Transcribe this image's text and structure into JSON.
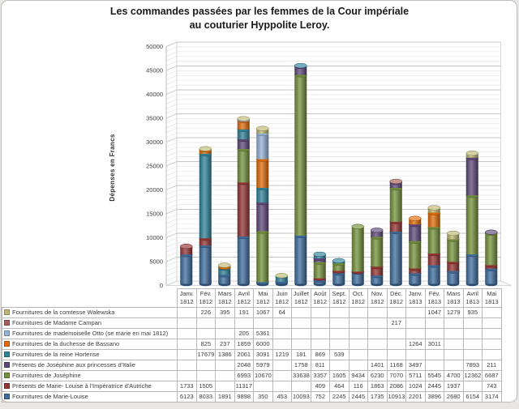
{
  "title": {
    "line1": "Les commandes passées par les femmes de la Cour impériale",
    "line2": "au couturier Hyppolite Leroy."
  },
  "chart_data": {
    "type": "bar",
    "variant": "3d-stacked-cylinder",
    "title": "Les commandes passées par les femmes de la Cour impériale au couturier Hyppolite Leroy.",
    "xlabel": "",
    "ylabel": "Dépenses en Francs",
    "ylim": [
      0,
      50000
    ],
    "ytick_step": 5000,
    "minor_gridline_step": 1000,
    "grid": true,
    "legend_position": "data-table-left-column",
    "stacking": "series are stacked bottom-to-top in reverse list order (Fournitures de Marie-Louise at bottom, comtesse Walewska on top)",
    "categories": [
      "Janv. 1812",
      "Fév. 1812",
      "Mars 1812",
      "Avril 1812",
      "Mai 1812",
      "Juin 1812",
      "Juillet 1812",
      "Août 1812",
      "Sept. 1812",
      "Oct. 1812",
      "Nov. 1812",
      "Déc. 1812",
      "Janv. 1813",
      "Fév. 1813",
      "Mars 1813",
      "Avril 1813",
      "Mai 1813"
    ],
    "series": [
      {
        "name": "Fournitures de la comtesse Walewska",
        "color": "#BDB873",
        "values": [
          null,
          226,
          395,
          191,
          1067,
          64,
          null,
          null,
          null,
          null,
          null,
          null,
          null,
          1047,
          1279,
          935,
          null
        ]
      },
      {
        "name": "Fournitures de Madame Campan",
        "color": "#A85E5B",
        "values": [
          null,
          null,
          null,
          null,
          null,
          null,
          null,
          null,
          null,
          null,
          null,
          217,
          null,
          null,
          null,
          null,
          null
        ]
      },
      {
        "name": "Fournitures de mademoiselle Otto (se marie en mai 1812)",
        "color": "#95B3D7",
        "values": [
          null,
          null,
          null,
          205,
          5361,
          null,
          null,
          null,
          null,
          null,
          null,
          null,
          null,
          null,
          null,
          null,
          null
        ]
      },
      {
        "name": "Fournitures de la duchesse de Bassano",
        "color": "#E36C09",
        "values": [
          null,
          825,
          237,
          1859,
          6000,
          null,
          null,
          null,
          null,
          null,
          null,
          null,
          1264,
          3011,
          null,
          null,
          null
        ]
      },
      {
        "name": "Fournitures de la reine Hortense",
        "color": "#31849B",
        "values": [
          null,
          17679,
          1386,
          2061,
          3091,
          1219,
          181,
          869,
          539,
          null,
          null,
          null,
          null,
          null,
          null,
          null,
          null
        ]
      },
      {
        "name": "Présents de Joséphine aux princesses d'Italie",
        "color": "#5F497A",
        "values": [
          null,
          null,
          null,
          2048,
          5979,
          null,
          1758,
          811,
          null,
          null,
          1401,
          1168,
          3497,
          null,
          null,
          7893,
          211
        ]
      },
      {
        "name": "Fournitures de Joséphine",
        "color": "#76923C",
        "values": [
          null,
          null,
          null,
          6993,
          10670,
          null,
          33638,
          3357,
          1605,
          9434,
          6230,
          7070,
          5711,
          5545,
          4700,
          12362,
          6687
        ]
      },
      {
        "name": "Présents de Marie- Louise à l'Impératrice d'Autriche",
        "color": "#943634",
        "values": [
          1733,
          1505,
          null,
          11317,
          null,
          null,
          null,
          409,
          464,
          116,
          1863,
          2086,
          1024,
          2445,
          1937,
          null,
          743
        ]
      },
      {
        "name": "Fournitures de Marie-Louise",
        "color": "#3F6D9F",
        "values": [
          6123,
          8033,
          1891,
          9898,
          350,
          453,
          10093,
          752,
          2245,
          2445,
          1735,
          10913,
          2201,
          3896,
          2680,
          6154,
          3174
        ]
      }
    ]
  }
}
